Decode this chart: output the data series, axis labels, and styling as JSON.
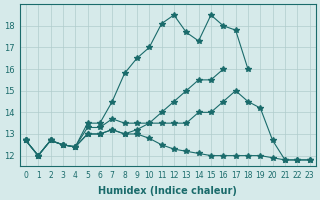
{
  "title": "",
  "xlabel": "Humidex (Indice chaleur)",
  "ylabel": "",
  "bg_color": "#d6eaea",
  "grid_color": "#b0cccc",
  "line_color": "#1a6b6b",
  "xlim": [
    -0.5,
    23.5
  ],
  "ylim": [
    11.5,
    19.0
  ],
  "xticks": [
    0,
    1,
    2,
    3,
    4,
    5,
    6,
    7,
    8,
    9,
    10,
    11,
    12,
    13,
    14,
    15,
    16,
    17,
    18,
    19,
    20,
    21,
    22,
    23
  ],
  "yticks": [
    12,
    13,
    14,
    15,
    16,
    17,
    18
  ],
  "series": [
    {
      "x": [
        0,
        1,
        2,
        3,
        4,
        5,
        6,
        7,
        8,
        9,
        10,
        11,
        12,
        13,
        14,
        15,
        16,
        17,
        18
      ],
      "y": [
        12.7,
        12.0,
        12.7,
        12.5,
        12.4,
        13.5,
        13.5,
        14.5,
        15.8,
        16.5,
        17.0,
        18.1,
        18.5,
        17.7,
        17.3,
        18.5,
        18.0,
        17.8,
        16.0
      ]
    },
    {
      "x": [
        0,
        1,
        2,
        3,
        4,
        5,
        6,
        7,
        8,
        9,
        10,
        11,
        12,
        13,
        14,
        15,
        16,
        17,
        18,
        19,
        20,
        21,
        22,
        23
      ],
      "y": [
        12.7,
        12.0,
        12.7,
        12.5,
        12.4,
        13.3,
        13.3,
        13.7,
        13.5,
        13.5,
        13.5,
        13.5,
        13.5,
        13.5,
        14.0,
        14.0,
        14.5,
        15.0,
        14.5,
        14.2,
        12.7,
        11.8,
        11.8,
        11.8
      ]
    },
    {
      "x": [
        0,
        1,
        2,
        3,
        4,
        5,
        6,
        7,
        8,
        9,
        10,
        11,
        12,
        13,
        14,
        15,
        16,
        17,
        18,
        19,
        20,
        21,
        22,
        23
      ],
      "y": [
        12.7,
        12.0,
        12.7,
        12.5,
        12.4,
        13.0,
        13.0,
        13.2,
        13.0,
        13.0,
        12.8,
        12.5,
        12.3,
        12.2,
        12.1,
        12.0,
        12.0,
        12.0,
        12.0,
        12.0,
        11.9,
        11.8,
        11.8,
        11.8
      ]
    },
    {
      "x": [
        0,
        1,
        2,
        3,
        4,
        5,
        6,
        7,
        8,
        9,
        10,
        11,
        12,
        13,
        14,
        15,
        16
      ],
      "y": [
        12.7,
        12.0,
        12.7,
        12.5,
        12.4,
        13.0,
        13.0,
        13.2,
        13.0,
        13.2,
        13.5,
        14.0,
        14.5,
        15.0,
        15.5,
        15.5,
        16.0
      ]
    }
  ]
}
